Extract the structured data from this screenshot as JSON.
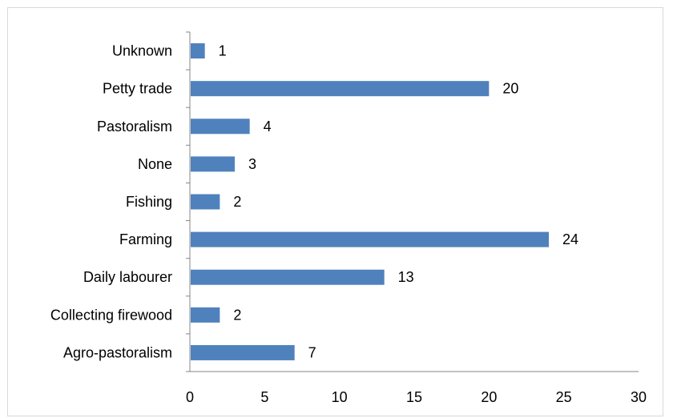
{
  "chart_data": {
    "type": "bar",
    "orientation": "horizontal",
    "title": "",
    "xlabel": "",
    "ylabel": "",
    "categories": [
      "Unknown",
      "Petty trade",
      "Pastoralism",
      "None",
      "Fishing",
      "Farming",
      "Daily labourer",
      "Collecting firewood",
      "Agro-pastoralism"
    ],
    "values": [
      1,
      20,
      4,
      3,
      2,
      24,
      13,
      2,
      7
    ],
    "xlim": [
      0,
      30
    ],
    "x_ticks": [
      "0",
      "5",
      "10",
      "15",
      "20",
      "25",
      "30"
    ],
    "data_labels": [
      "1",
      "20",
      "4",
      "3",
      "2",
      "24",
      "13",
      "2",
      "7"
    ],
    "grid": false,
    "legend": "none",
    "bar_color": "#4f81bd",
    "axis_color": "#868686"
  }
}
